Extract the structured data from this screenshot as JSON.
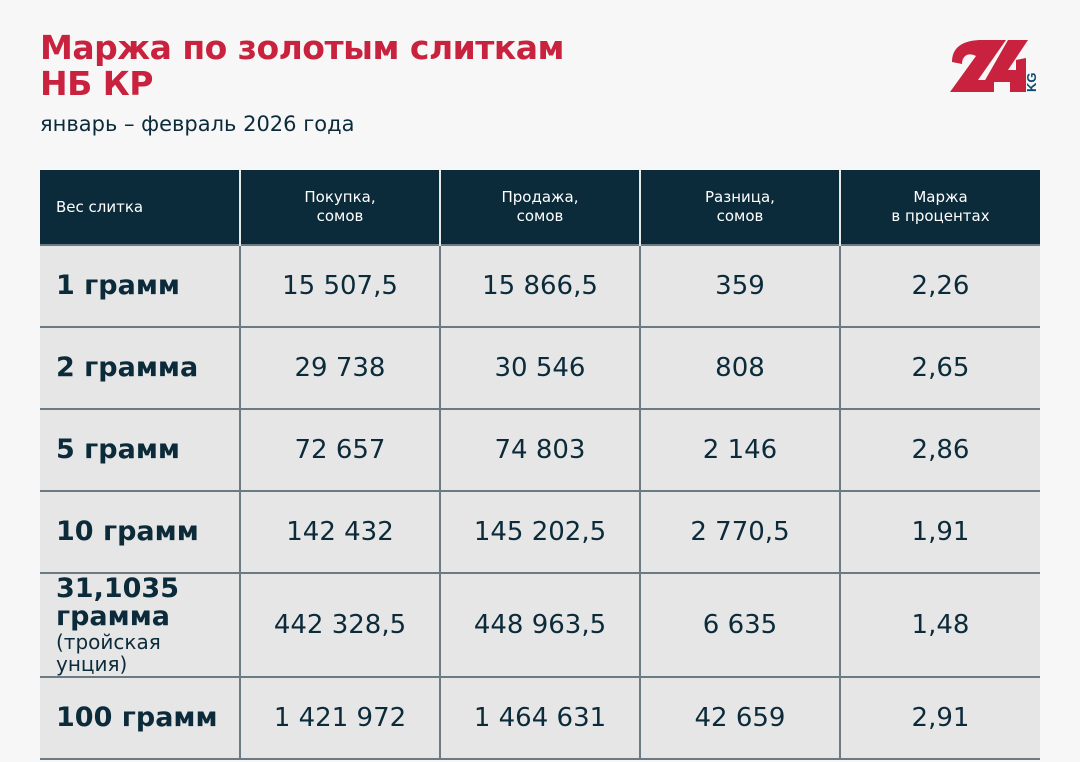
{
  "title_line1": "Маржа по золотым слиткам",
  "title_line2": "НБ КР",
  "subtitle": "январь – февраль 2026 года",
  "logo": {
    "text": "24",
    "suffix": "KG"
  },
  "colors": {
    "accent": "#c8223e",
    "dark": "#0c2b3a",
    "row_bg": "#e6e6e6"
  },
  "table": {
    "headers": [
      {
        "l1": "Вес слитка",
        "l2": ""
      },
      {
        "l1": "Покупка,",
        "l2": "сомов"
      },
      {
        "l1": "Продажа,",
        "l2": "сомов"
      },
      {
        "l1": "Разница,",
        "l2": "сомов"
      },
      {
        "l1": "Маржа",
        "l2": "в процентах"
      }
    ],
    "rows": [
      {
        "weight": "1 грамм",
        "note": "",
        "buy": "15 507,5",
        "sell": "15 866,5",
        "diff": "359",
        "margin": "2,26"
      },
      {
        "weight": "2 грамма",
        "note": "",
        "buy": "29 738",
        "sell": "30 546",
        "diff": "808",
        "margin": "2,65"
      },
      {
        "weight": "5 грамм",
        "note": "",
        "buy": "72 657",
        "sell": "74 803",
        "diff": "2 146",
        "margin": "2,86"
      },
      {
        "weight": "10 грамм",
        "note": "",
        "buy": "142 432",
        "sell": "145 202,5",
        "diff": "2 770,5",
        "margin": "1,91"
      },
      {
        "weight": "31,1035 грамма",
        "note": "(тройская унция)",
        "buy": "442 328,5",
        "sell": "448 963,5",
        "diff": "6 635",
        "margin": "1,48"
      },
      {
        "weight": "100 грамм",
        "note": "",
        "buy": "1 421 972",
        "sell": "1 464 631",
        "diff": "42 659",
        "margin": "2,91"
      }
    ]
  }
}
